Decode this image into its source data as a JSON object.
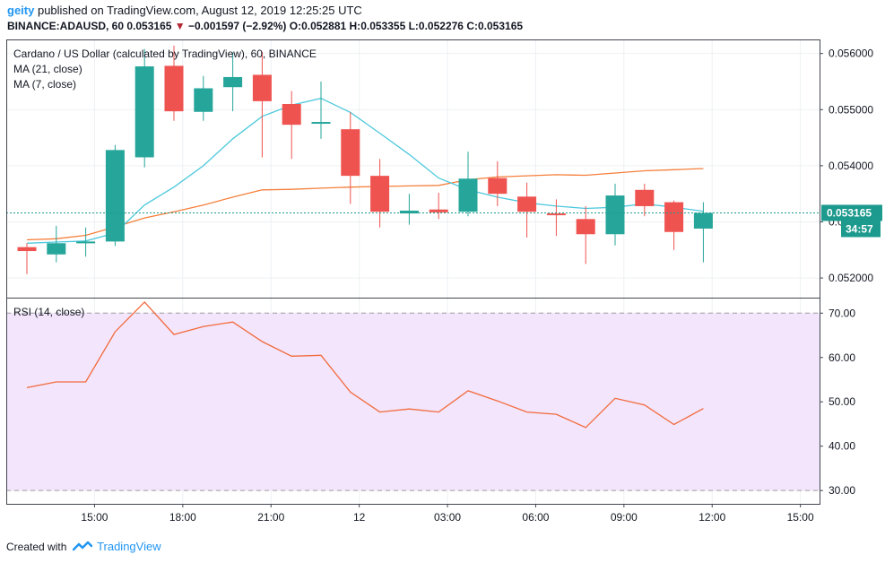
{
  "header": {
    "user": "geity",
    "published_text": "published on TradingView.com, August 12, 2019 12:25:25 UTC",
    "symbol_line": "BINANCE:ADAUSD, 60",
    "last_price": "0.053165",
    "change_arrow": "▼",
    "change": "−0.001597 (−2.92%)",
    "o_label": "O:",
    "o": "0.052881",
    "h_label": "H:",
    "h": "0.053355",
    "l_label": "L:",
    "l": "0.052276",
    "c_label": "C:",
    "c": "0.053165"
  },
  "legend": {
    "title": "Cardano / US Dollar (calculated by TradingView), 60, BINANCE",
    "ma21": "MA (21, close)",
    "ma7": "MA (7, close)",
    "rsi": "RSI (14, close)"
  },
  "price_label": "0.053165",
  "countdown": "34:57",
  "footer": {
    "created_with": "Created with",
    "brand": "TradingView"
  },
  "colors": {
    "up": "#26a69a",
    "down": "#ef5350",
    "ma21": "#f57f3b",
    "ma7": "#4dc8dc",
    "rsi_line": "#f26a3c",
    "rsi_band": "#f3e5fb",
    "price_label_bg": "#1c9a8d"
  },
  "chart_data": [
    {
      "type": "candlestick",
      "title": "Cardano / US Dollar (calculated by TradingView), 60, BINANCE",
      "ylim": [
        0.05165,
        0.05625
      ],
      "y_ticks": [
        0.052,
        0.053,
        0.054,
        0.055,
        0.056
      ],
      "y_tick_labels": [
        "0.052000",
        "0.053000",
        "0.054000",
        "0.055000",
        "0.056000"
      ],
      "x_ticks": [
        {
          "i": 2.3,
          "label": "15:00"
        },
        {
          "i": 5.3,
          "label": "18:00"
        },
        {
          "i": 8.3,
          "label": "21:00"
        },
        {
          "i": 11.3,
          "label": "12"
        },
        {
          "i": 14.3,
          "label": "03:00"
        },
        {
          "i": 17.3,
          "label": "06:00"
        },
        {
          "i": 20.3,
          "label": "09:00"
        },
        {
          "i": 23.3,
          "label": "12:00"
        },
        {
          "i": 26.3,
          "label": "15:00"
        }
      ],
      "candles": [
        {
          "o": 0.05255,
          "h": 0.05262,
          "l": 0.05207,
          "c": 0.05248
        },
        {
          "o": 0.05242,
          "h": 0.05293,
          "l": 0.05228,
          "c": 0.05262
        },
        {
          "o": 0.05263,
          "h": 0.0529,
          "l": 0.05238,
          "c": 0.05265
        },
        {
          "o": 0.05265,
          "h": 0.05437,
          "l": 0.05257,
          "c": 0.05428
        },
        {
          "o": 0.05415,
          "h": 0.05608,
          "l": 0.05397,
          "c": 0.05577
        },
        {
          "o": 0.05578,
          "h": 0.05614,
          "l": 0.0548,
          "c": 0.05497
        },
        {
          "o": 0.05496,
          "h": 0.0556,
          "l": 0.0548,
          "c": 0.05538
        },
        {
          "o": 0.0554,
          "h": 0.05602,
          "l": 0.05497,
          "c": 0.05558
        },
        {
          "o": 0.05562,
          "h": 0.05603,
          "l": 0.05415,
          "c": 0.05515
        },
        {
          "o": 0.0551,
          "h": 0.05533,
          "l": 0.05412,
          "c": 0.05473
        },
        {
          "o": 0.05475,
          "h": 0.0555,
          "l": 0.05448,
          "c": 0.05478
        },
        {
          "o": 0.05465,
          "h": 0.05495,
          "l": 0.05332,
          "c": 0.05382
        },
        {
          "o": 0.05382,
          "h": 0.05412,
          "l": 0.0529,
          "c": 0.05318
        },
        {
          "o": 0.05315,
          "h": 0.0535,
          "l": 0.05295,
          "c": 0.0532
        },
        {
          "o": 0.05322,
          "h": 0.05352,
          "l": 0.05305,
          "c": 0.05317
        },
        {
          "o": 0.05318,
          "h": 0.05425,
          "l": 0.0531,
          "c": 0.05377
        },
        {
          "o": 0.05378,
          "h": 0.05408,
          "l": 0.05328,
          "c": 0.0535
        },
        {
          "o": 0.05345,
          "h": 0.0537,
          "l": 0.05272,
          "c": 0.05318
        },
        {
          "o": 0.05315,
          "h": 0.0534,
          "l": 0.05275,
          "c": 0.05312
        },
        {
          "o": 0.05305,
          "h": 0.05328,
          "l": 0.05225,
          "c": 0.05278
        },
        {
          "o": 0.05278,
          "h": 0.05368,
          "l": 0.05258,
          "c": 0.05347
        },
        {
          "o": 0.05357,
          "h": 0.05368,
          "l": 0.0531,
          "c": 0.05328
        },
        {
          "o": 0.05335,
          "h": 0.05338,
          "l": 0.0525,
          "c": 0.05282
        },
        {
          "o": 0.05288,
          "h": 0.05335,
          "l": 0.05228,
          "c": 0.05316
        }
      ],
      "ma21": [
        0.05268,
        0.0527,
        0.05276,
        0.05291,
        0.05307,
        0.05318,
        0.0533,
        0.05344,
        0.05357,
        0.05358,
        0.0536,
        0.05362,
        0.05363,
        0.05364,
        0.05365,
        0.05375,
        0.0538,
        0.05382,
        0.05384,
        0.05383,
        0.05387,
        0.05391,
        0.05393,
        0.05395
      ],
      "ma7": [
        0.05262,
        0.05264,
        0.05266,
        0.0528,
        0.0533,
        0.05362,
        0.054,
        0.05448,
        0.05488,
        0.05508,
        0.0552,
        0.05495,
        0.05458,
        0.0542,
        0.05378,
        0.05357,
        0.05344,
        0.05334,
        0.05328,
        0.05324,
        0.05326,
        0.05332,
        0.05326,
        0.05319
      ]
    },
    {
      "type": "line",
      "title": "RSI (14, close)",
      "ylim": [
        27,
        73.5
      ],
      "y_ticks": [
        30,
        40,
        50,
        60,
        70
      ],
      "y_tick_labels": [
        "30.00",
        "40.00",
        "50.00",
        "60.00",
        "70.00"
      ],
      "band": [
        30,
        70
      ],
      "values": [
        53.2,
        54.5,
        54.5,
        65.8,
        72.5,
        65.2,
        67.0,
        68.0,
        63.6,
        60.3,
        60.5,
        52.2,
        47.7,
        48.4,
        47.7,
        52.5,
        50.2,
        47.7,
        47.2,
        44.2,
        50.8,
        49.3,
        44.9,
        48.5
      ]
    }
  ]
}
